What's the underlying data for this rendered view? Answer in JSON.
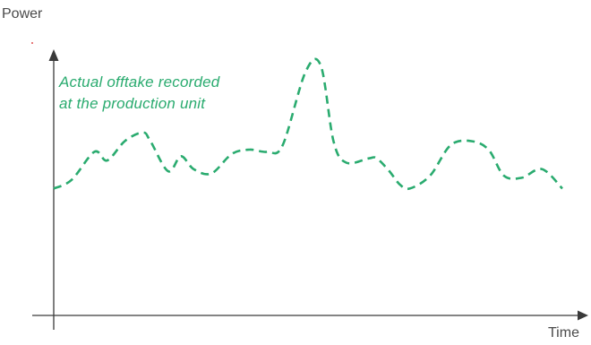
{
  "chart_data": {
    "type": "line",
    "title": "",
    "xlabel": "Time",
    "ylabel": "Power",
    "xlim": [
      0,
      100
    ],
    "ylim": [
      0,
      100
    ],
    "grid": false,
    "legend": "none",
    "annotations": [
      "Actual offtake recorded",
      "at the production unit"
    ],
    "series": [
      {
        "style": "dashed",
        "x": [
          0,
          3.5,
          8,
          10.5,
          14,
          17.5,
          19,
          22.5,
          25,
          27.5,
          31,
          35,
          38.5,
          42,
          45,
          49.5,
          52.5,
          55,
          57.5,
          62,
          63.5,
          66,
          68,
          70,
          74,
          78,
          82,
          85.5,
          88.5,
          92,
          96,
          100
        ],
        "y": [
          38,
          42,
          55,
          51,
          60,
          64,
          60,
          46,
          53,
          47,
          45,
          54,
          56,
          55,
          58,
          92,
          95,
          60,
          50,
          52,
          52,
          46,
          40,
          38,
          44,
          58,
          60,
          56,
          44,
          43,
          47,
          38
        ]
      }
    ],
    "colors": {
      "series": "#2aab6f",
      "axis": "#3a3a3a",
      "text": "#4a4a4a",
      "dot": "#e05050"
    }
  }
}
